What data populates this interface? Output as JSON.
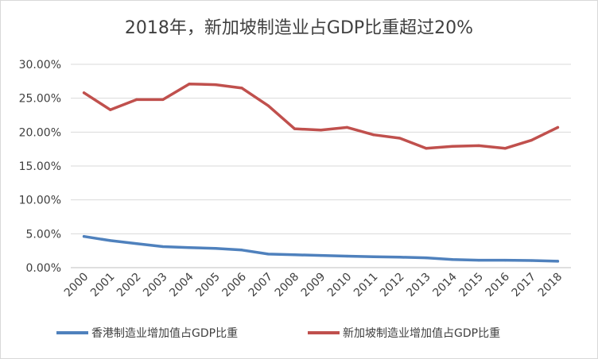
{
  "chart_data": {
    "type": "line",
    "title": "2018年，新加坡制造业占GDP比重超过20%",
    "xlabel": "",
    "ylabel": "",
    "categories": [
      "2000",
      "2001",
      "2002",
      "2003",
      "2004",
      "2005",
      "2006",
      "2007",
      "2008",
      "2009",
      "2010",
      "2011",
      "2012",
      "2013",
      "2014",
      "2015",
      "2016",
      "2017",
      "2018"
    ],
    "ylim": [
      0,
      0.3
    ],
    "yticks": [
      0,
      0.05,
      0.1,
      0.15,
      0.2,
      0.25,
      0.3
    ],
    "ytick_labels": [
      "0.00%",
      "5.00%",
      "10.00%",
      "15.00%",
      "20.00%",
      "25.00%",
      "30.00%"
    ],
    "grid": true,
    "legend_position": "bottom",
    "series": [
      {
        "name": "香港制造业增加值占GDP比重",
        "color": "#4f81bd",
        "values": [
          0.046,
          0.04,
          0.0355,
          0.031,
          0.0295,
          0.0285,
          0.026,
          0.02,
          0.019,
          0.018,
          0.017,
          0.016,
          0.0155,
          0.0145,
          0.012,
          0.011,
          0.011,
          0.0105,
          0.0095
        ]
      },
      {
        "name": "新加坡制造业增加值占GDP比重",
        "color": "#c0504d",
        "values": [
          0.258,
          0.233,
          0.248,
          0.248,
          0.271,
          0.27,
          0.265,
          0.239,
          0.205,
          0.203,
          0.207,
          0.196,
          0.191,
          0.176,
          0.179,
          0.18,
          0.176,
          0.188,
          0.207
        ]
      }
    ]
  }
}
